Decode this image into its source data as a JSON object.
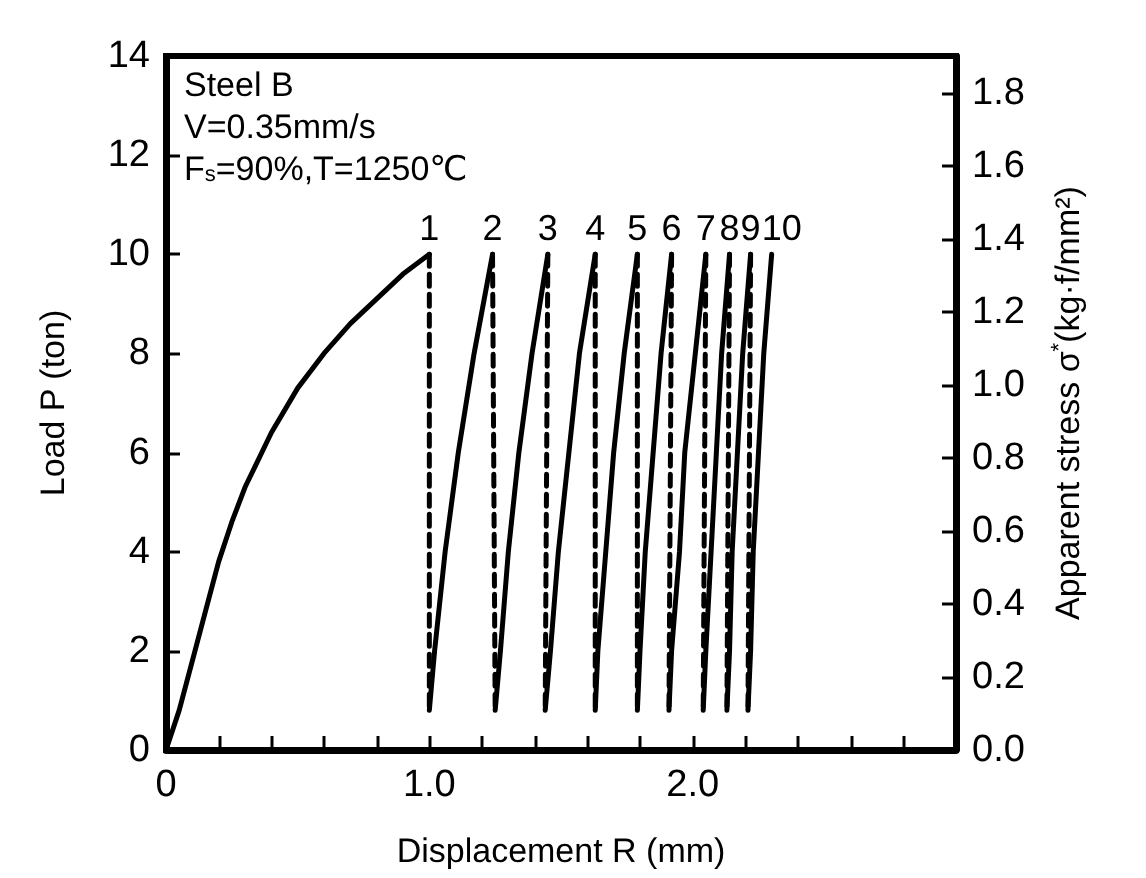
{
  "chart_data": {
    "type": "line",
    "xlabel": "Displacement R (mm)",
    "ylabel": "Load P (ton)",
    "y2label": "Apparent stress σ$^{*}$(kg·f/mm²)",
    "xlim": [
      0,
      3
    ],
    "xticks": [
      0,
      {
        "value": 0.2,
        "label": null
      },
      {
        "value": 0.4,
        "label": null
      },
      {
        "value": 0.6,
        "label": null
      },
      {
        "value": 0.8,
        "label": null
      },
      {
        "value": 1,
        "label": "1.0"
      },
      {
        "value": 1.2,
        "label": null
      },
      {
        "value": 1.4,
        "label": null
      },
      {
        "value": 1.6,
        "label": null
      },
      {
        "value": 1.8,
        "label": null
      },
      {
        "value": 2,
        "label": "2.0"
      },
      {
        "value": 2.2,
        "label": null
      },
      {
        "value": 2.4,
        "label": null
      },
      {
        "value": 2.6,
        "label": null
      },
      {
        "value": 2.8,
        "label": null
      }
    ],
    "ylim": [
      0,
      14
    ],
    "yticks": [
      0,
      2,
      4,
      6,
      8,
      10,
      12,
      14
    ],
    "y2lim": [
      0,
      1.9
    ],
    "y2ticks": [
      {
        "value": 0,
        "label": "0.0"
      },
      {
        "value": 0.2,
        "label": "0.2"
      },
      {
        "value": 0.4,
        "label": "0.4"
      },
      {
        "value": 0.6,
        "label": "0.6"
      },
      {
        "value": 0.8,
        "label": "0.8"
      },
      {
        "value": 1,
        "label": "1.0"
      },
      {
        "value": 1.2,
        "label": "1.2"
      },
      {
        "value": 1.4,
        "label": "1.4"
      },
      {
        "value": 1.6,
        "label": "1.6"
      },
      {
        "value": 1.8,
        "label": "1.8"
      }
    ],
    "grid": false,
    "marker": "none",
    "annotations": [
      "Steel B",
      "V=0.35mm/s",
      "F$_{s}$=90%,T=1250℃",
      {
        "text": "1",
        "x": 1.0,
        "y": 10
      },
      {
        "text": "2",
        "x": 1.24,
        "y": 10
      },
      {
        "text": "3",
        "x": 1.45,
        "y": 10
      },
      {
        "text": "4",
        "x": 1.63,
        "y": 10
      },
      {
        "text": "5",
        "x": 1.79,
        "y": 10
      },
      {
        "text": "6",
        "x": 1.92,
        "y": 10
      },
      {
        "text": "7",
        "x": 2.05,
        "y": 10
      },
      {
        "text": "8",
        "x": 2.14,
        "y": 10
      },
      {
        "text": "9",
        "x": 2.22,
        "y": 10
      },
      {
        "text": "10",
        "x": 2.3,
        "y": 10
      }
    ],
    "series": [
      {
        "color": "#000000",
        "line_style": "solid",
        "x": [
          0,
          0.05,
          0.1,
          0.15,
          0.2,
          0.25,
          0.3,
          0.4,
          0.5,
          0.6,
          0.7,
          0.8,
          0.9,
          1.0
        ],
        "values": [
          0,
          0.8,
          1.8,
          2.8,
          3.8,
          4.6,
          5.3,
          6.4,
          7.3,
          8.0,
          8.6,
          9.1,
          9.6,
          10
        ]
      },
      {
        "color": "#000000",
        "line_style": "dashed",
        "x": [
          1.0,
          1.0
        ],
        "values": [
          10,
          0.8
        ]
      },
      {
        "color": "#000000",
        "line_style": "solid",
        "x": [
          1.0,
          1.02,
          1.06,
          1.11,
          1.17,
          1.24
        ],
        "values": [
          0.8,
          2,
          4,
          6,
          8,
          10
        ]
      },
      {
        "color": "#000000",
        "line_style": "dashed",
        "x": [
          1.24,
          1.25
        ],
        "values": [
          10,
          0.8
        ]
      },
      {
        "color": "#000000",
        "line_style": "solid",
        "x": [
          1.25,
          1.27,
          1.3,
          1.34,
          1.39,
          1.45
        ],
        "values": [
          0.8,
          2,
          4,
          6,
          8,
          10
        ]
      },
      {
        "color": "#000000",
        "line_style": "dashed",
        "x": [
          1.45,
          1.44
        ],
        "values": [
          10,
          0.8
        ]
      },
      {
        "color": "#000000",
        "line_style": "solid",
        "x": [
          1.44,
          1.46,
          1.49,
          1.53,
          1.57,
          1.63
        ],
        "values": [
          0.8,
          2,
          4,
          6,
          8,
          10
        ]
      },
      {
        "color": "#000000",
        "line_style": "dashed",
        "x": [
          1.63,
          1.63
        ],
        "values": [
          10,
          0.8
        ]
      },
      {
        "color": "#000000",
        "line_style": "solid",
        "x": [
          1.63,
          1.64,
          1.67,
          1.7,
          1.74,
          1.79
        ],
        "values": [
          0.8,
          2,
          4,
          6,
          8,
          10
        ]
      },
      {
        "color": "#000000",
        "line_style": "dashed",
        "x": [
          1.79,
          1.79
        ],
        "values": [
          10,
          0.8
        ]
      },
      {
        "color": "#000000",
        "line_style": "solid",
        "x": [
          1.79,
          1.8,
          1.82,
          1.85,
          1.88,
          1.92
        ],
        "values": [
          0.8,
          2,
          4,
          6,
          8,
          10
        ]
      },
      {
        "color": "#000000",
        "line_style": "dashed",
        "x": [
          1.92,
          1.91
        ],
        "values": [
          10,
          0.8
        ]
      },
      {
        "color": "#000000",
        "line_style": "solid",
        "x": [
          1.91,
          1.92,
          1.95,
          1.97,
          2.01,
          2.05
        ],
        "values": [
          0.8,
          2,
          4,
          6,
          8,
          10
        ]
      },
      {
        "color": "#000000",
        "line_style": "dashed",
        "x": [
          2.05,
          2.04
        ],
        "values": [
          10,
          0.8
        ]
      },
      {
        "color": "#000000",
        "line_style": "solid",
        "x": [
          2.04,
          2.05,
          2.07,
          2.09,
          2.11,
          2.14
        ],
        "values": [
          0.8,
          2,
          4,
          6,
          8,
          10
        ]
      },
      {
        "color": "#000000",
        "line_style": "dashed",
        "x": [
          2.14,
          2.13
        ],
        "values": [
          10,
          0.8
        ]
      },
      {
        "color": "#000000",
        "line_style": "solid",
        "x": [
          2.13,
          2.14,
          2.15,
          2.17,
          2.19,
          2.22
        ],
        "values": [
          0.8,
          2,
          4,
          6,
          8,
          10
        ]
      },
      {
        "color": "#000000",
        "line_style": "dashed",
        "x": [
          2.22,
          2.21
        ],
        "values": [
          10,
          0.8
        ]
      },
      {
        "color": "#000000",
        "line_style": "solid",
        "x": [
          2.21,
          2.22,
          2.23,
          2.25,
          2.27,
          2.3
        ],
        "values": [
          0.8,
          2,
          4,
          6,
          8,
          10
        ]
      }
    ]
  }
}
